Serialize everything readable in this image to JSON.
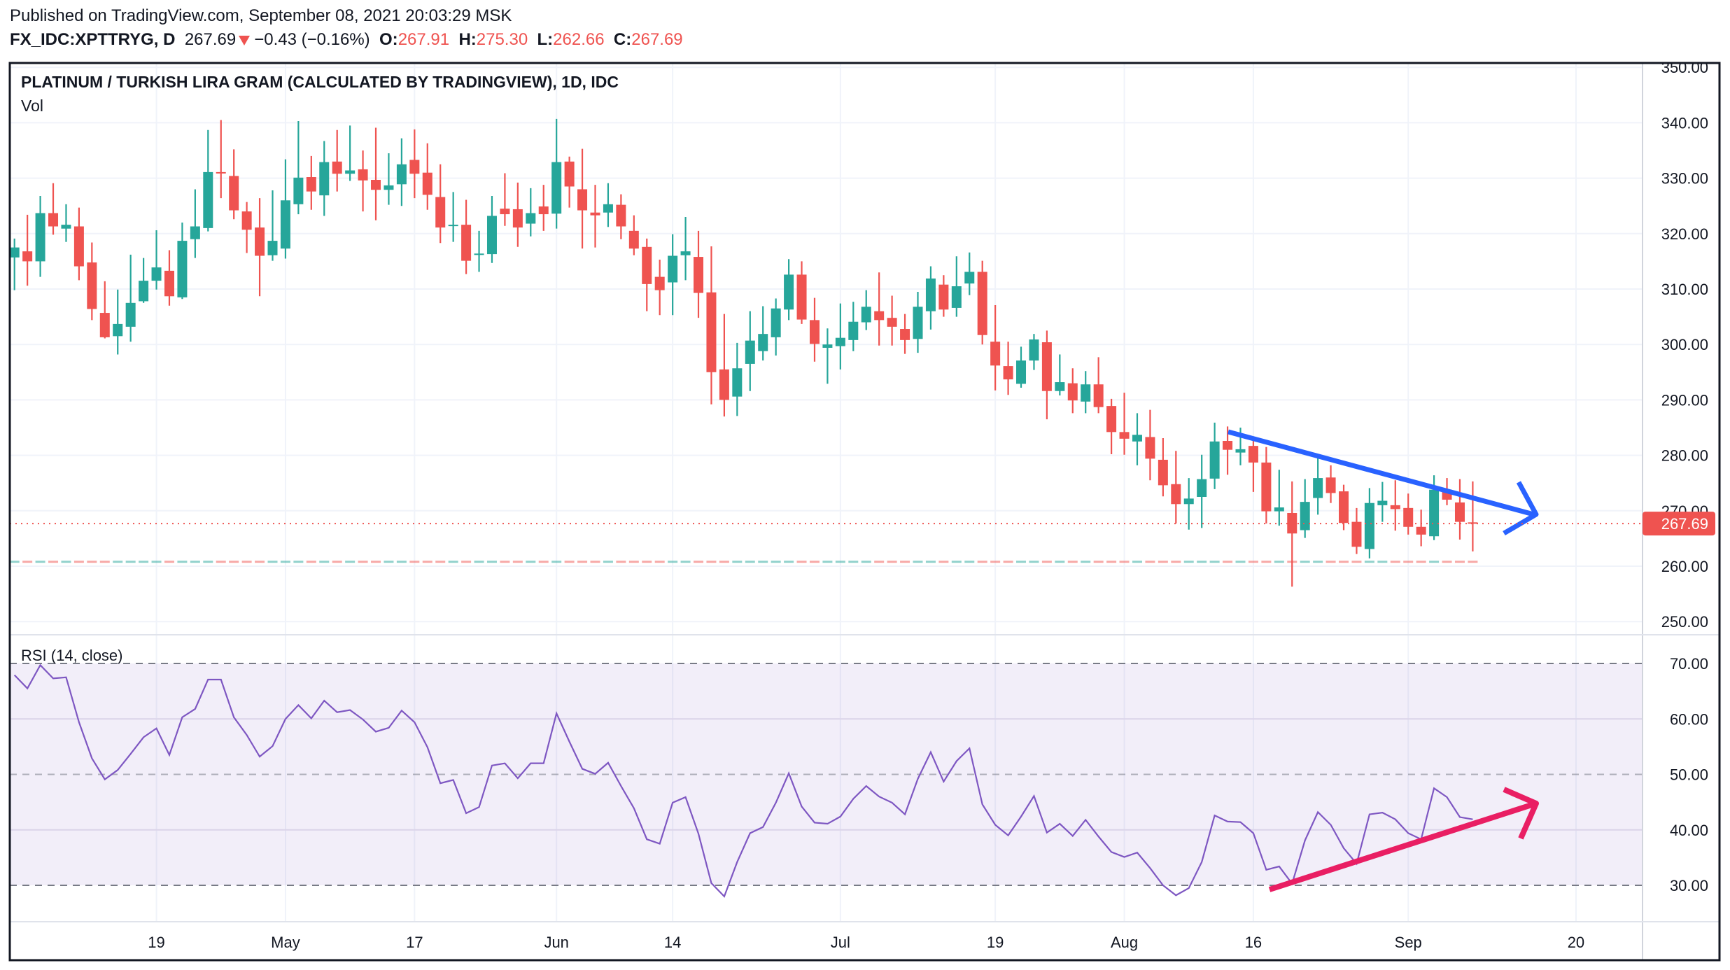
{
  "header": {
    "published": "Published on TradingView.com, September 08, 2021 20:03:29 MSK",
    "symbol": "FX_IDC:XPTTRYG, D",
    "last": "267.69",
    "change": "−0.43 (−0.16%)",
    "o_label": "O:",
    "o": "267.91",
    "h_label": "H:",
    "h": "275.30",
    "l_label": "L:",
    "l": "262.66",
    "c_label": "C:",
    "c": "267.69"
  },
  "colors": {
    "up": "#26a69a",
    "down": "#ef5350",
    "rsi": "#7e57c2",
    "trend_price": "#2962ff",
    "trend_rsi": "#e91e63"
  },
  "chart_data": {
    "type": "candlestick",
    "title": "PLATINUM / TURKISH LIRA GRAM (CALCULATED BY TRADINGVIEW), 1D, IDC",
    "volume_label": "Vol",
    "ylim": [
      248,
      352
    ],
    "y_ticks": [
      "350.00",
      "340.00",
      "330.00",
      "320.00",
      "310.00",
      "300.00",
      "290.00",
      "280.00",
      "270.00",
      "260.00",
      "250.00"
    ],
    "last_price": 267.69,
    "last_price_label": "267.69",
    "x_ticks": [
      {
        "label": "19",
        "index": 11
      },
      {
        "label": "May",
        "index": 21
      },
      {
        "label": "17",
        "index": 31
      },
      {
        "label": "Jun",
        "index": 42
      },
      {
        "label": "14",
        "index": 51
      },
      {
        "label": "Jul",
        "index": 64
      },
      {
        "label": "19",
        "index": 76
      },
      {
        "label": "Aug",
        "index": 86
      },
      {
        "label": "16",
        "index": 96
      },
      {
        "label": "Sep",
        "index": 108
      },
      {
        "label": "20",
        "index": 121
      }
    ],
    "ohlc": [
      [
        315.7,
        319.1,
        309.8,
        317.5
      ],
      [
        316.8,
        323.4,
        310.6,
        315.0
      ],
      [
        315.0,
        326.8,
        312.2,
        323.7
      ],
      [
        323.7,
        329.1,
        319.8,
        321.3
      ],
      [
        320.9,
        325.3,
        318.5,
        321.6
      ],
      [
        321.3,
        324.7,
        311.6,
        314.1
      ],
      [
        314.8,
        318.4,
        304.4,
        306.4
      ],
      [
        305.7,
        311.4,
        301.1,
        301.3
      ],
      [
        301.5,
        309.9,
        298.2,
        303.7
      ],
      [
        303.2,
        316.2,
        300.5,
        307.5
      ],
      [
        307.8,
        315.6,
        307.5,
        311.5
      ],
      [
        311.5,
        320.6,
        309.9,
        313.9
      ],
      [
        313.3,
        317.0,
        307.0,
        308.7
      ],
      [
        308.5,
        322.0,
        308.2,
        318.7
      ],
      [
        319.0,
        328.0,
        315.6,
        321.3
      ],
      [
        321.0,
        338.7,
        320.4,
        331.1
      ],
      [
        331.1,
        340.5,
        326.4,
        331.0
      ],
      [
        330.4,
        335.2,
        322.6,
        324.2
      ],
      [
        324.0,
        325.7,
        316.5,
        320.7
      ],
      [
        321.1,
        326.4,
        308.7,
        316.0
      ],
      [
        316.1,
        327.8,
        315.1,
        318.7
      ],
      [
        317.3,
        333.4,
        315.5,
        326.0
      ],
      [
        325.3,
        340.3,
        323.5,
        330.1
      ],
      [
        330.2,
        334.0,
        324.3,
        327.6
      ],
      [
        326.9,
        336.7,
        323.2,
        332.9
      ],
      [
        333.0,
        338.7,
        327.6,
        330.8
      ],
      [
        330.8,
        339.5,
        329.5,
        331.4
      ],
      [
        331.6,
        335.0,
        324.0,
        329.6
      ],
      [
        329.7,
        339.1,
        322.4,
        327.9
      ],
      [
        327.9,
        334.5,
        325.2,
        328.7
      ],
      [
        328.9,
        337.2,
        325.0,
        332.5
      ],
      [
        333.3,
        338.8,
        326.4,
        330.8
      ],
      [
        331.0,
        336.3,
        324.3,
        327.0
      ],
      [
        326.6,
        332.5,
        318.3,
        321.1
      ],
      [
        321.4,
        327.5,
        318.5,
        321.6
      ],
      [
        321.6,
        326.1,
        312.7,
        315.1
      ],
      [
        316.3,
        320.5,
        313.1,
        316.4
      ],
      [
        316.3,
        326.8,
        314.7,
        323.2
      ],
      [
        324.5,
        330.9,
        321.4,
        323.5
      ],
      [
        324.4,
        329.2,
        317.6,
        321.1
      ],
      [
        321.8,
        328.2,
        319.5,
        323.7
      ],
      [
        324.9,
        328.8,
        320.5,
        323.5
      ],
      [
        323.6,
        340.7,
        320.9,
        332.9
      ],
      [
        333.0,
        333.9,
        324.7,
        328.5
      ],
      [
        328.0,
        335.3,
        317.3,
        324.2
      ],
      [
        323.8,
        328.8,
        317.5,
        323.3
      ],
      [
        323.8,
        329.1,
        321.2,
        325.3
      ],
      [
        325.2,
        327.1,
        319.0,
        321.3
      ],
      [
        320.5,
        323.3,
        316.1,
        317.3
      ],
      [
        317.6,
        319.1,
        306.0,
        310.9
      ],
      [
        312.2,
        315.3,
        305.3,
        309.8
      ],
      [
        311.2,
        319.9,
        305.3,
        316.0
      ],
      [
        316.1,
        323.0,
        311.6,
        316.8
      ],
      [
        315.8,
        320.5,
        304.8,
        309.3
      ],
      [
        309.4,
        317.7,
        289.2,
        295.0
      ],
      [
        295.5,
        305.5,
        287.0,
        290.0
      ],
      [
        290.6,
        300.3,
        287.1,
        295.7
      ],
      [
        296.5,
        306.0,
        291.6,
        300.7
      ],
      [
        298.8,
        306.9,
        297.1,
        301.9
      ],
      [
        301.3,
        308.3,
        298.0,
        306.5
      ],
      [
        306.3,
        315.4,
        304.4,
        312.6
      ],
      [
        312.6,
        315.0,
        303.7,
        304.5
      ],
      [
        304.4,
        308.4,
        296.9,
        300.1
      ],
      [
        299.4,
        302.9,
        292.9,
        300.0
      ],
      [
        299.7,
        307.4,
        295.5,
        301.2
      ],
      [
        300.8,
        307.7,
        298.8,
        304.1
      ],
      [
        304.0,
        309.8,
        302.6,
        306.8
      ],
      [
        306.0,
        313.0,
        299.8,
        304.4
      ],
      [
        304.8,
        308.8,
        299.8,
        303.2
      ],
      [
        302.8,
        305.5,
        298.3,
        300.8
      ],
      [
        301.0,
        309.5,
        298.5,
        306.8
      ],
      [
        306.0,
        314.1,
        302.7,
        311.9
      ],
      [
        310.8,
        312.5,
        305.0,
        306.3
      ],
      [
        306.6,
        315.9,
        305.0,
        310.5
      ],
      [
        311.0,
        316.6,
        308.9,
        313.1
      ],
      [
        313.1,
        315.1,
        300.0,
        301.7
      ],
      [
        300.5,
        307.1,
        291.7,
        296.2
      ],
      [
        296.1,
        300.5,
        290.9,
        293.7
      ],
      [
        292.9,
        299.6,
        292.2,
        297.1
      ],
      [
        297.1,
        301.9,
        295.4,
        300.9
      ],
      [
        300.4,
        302.5,
        286.5,
        291.6
      ],
      [
        291.6,
        298.2,
        290.8,
        293.2
      ],
      [
        293.0,
        295.7,
        287.6,
        289.9
      ],
      [
        289.7,
        295.2,
        287.6,
        292.8
      ],
      [
        292.8,
        297.7,
        287.6,
        288.7
      ],
      [
        288.9,
        290.2,
        280.2,
        284.2
      ],
      [
        284.2,
        291.3,
        280.1,
        283.0
      ],
      [
        282.5,
        287.6,
        278.2,
        283.7
      ],
      [
        283.3,
        288.2,
        275.5,
        279.4
      ],
      [
        279.2,
        283.1,
        272.6,
        274.6
      ],
      [
        274.8,
        280.8,
        267.7,
        271.2
      ],
      [
        271.2,
        275.9,
        266.6,
        272.2
      ],
      [
        272.5,
        280.1,
        266.9,
        275.7
      ],
      [
        275.8,
        285.9,
        273.9,
        282.5
      ],
      [
        282.6,
        285.2,
        276.5,
        281.0
      ],
      [
        280.5,
        285.0,
        278.2,
        281.1
      ],
      [
        281.7,
        282.6,
        273.4,
        278.7
      ],
      [
        278.7,
        281.5,
        267.7,
        269.9
      ],
      [
        269.9,
        277.4,
        267.3,
        270.6
      ],
      [
        269.6,
        275.3,
        256.3,
        265.9
      ],
      [
        266.5,
        275.7,
        265.1,
        271.6
      ],
      [
        272.3,
        279.7,
        269.3,
        275.9
      ],
      [
        276.0,
        278.2,
        271.4,
        273.2
      ],
      [
        273.5,
        274.7,
        266.5,
        267.8
      ],
      [
        268.0,
        270.5,
        262.2,
        263.5
      ],
      [
        263.1,
        274.1,
        261.4,
        271.4
      ],
      [
        271.0,
        275.2,
        268.0,
        271.8
      ],
      [
        271.0,
        275.5,
        266.4,
        270.3
      ],
      [
        270.5,
        273.1,
        265.7,
        267.1
      ],
      [
        267.1,
        270.2,
        263.6,
        265.7
      ],
      [
        265.4,
        276.4,
        264.7,
        273.8
      ],
      [
        273.8,
        275.9,
        271.0,
        272.0
      ],
      [
        271.5,
        275.7,
        264.8,
        268.0
      ],
      [
        267.91,
        275.3,
        262.66,
        267.69
      ]
    ],
    "rsi": {
      "label": "RSI (14, close)",
      "ylim": [
        70,
        30
      ],
      "y_ticks": [
        "70.00",
        "60.00",
        "50.00",
        "40.00",
        "30.00"
      ],
      "band": [
        30,
        70
      ],
      "levels": [
        70,
        50,
        30
      ],
      "values": [
        67.9,
        65.5,
        69.7,
        67.3,
        67.5,
        59.4,
        52.9,
        49.1,
        50.8,
        53.7,
        56.7,
        58.3,
        53.5,
        60.3,
        61.8,
        67.1,
        67.1,
        60.3,
        57.1,
        53.2,
        55.1,
        60.0,
        62.5,
        60.1,
        63.3,
        61.2,
        61.6,
        59.9,
        57.7,
        58.4,
        61.5,
        59.4,
        54.9,
        48.4,
        49.0,
        43.0,
        44.1,
        51.6,
        52.0,
        49.3,
        52.0,
        52.0,
        61.0,
        55.9,
        51.0,
        50.1,
        52.1,
        47.9,
        43.9,
        38.3,
        37.5,
        44.9,
        45.9,
        39.3,
        30.4,
        28.0,
        34.2,
        39.4,
        40.5,
        44.9,
        50.2,
        44.2,
        41.3,
        41.1,
        42.4,
        45.6,
        47.9,
        46.0,
        44.9,
        42.8,
        49.2,
        54.0,
        48.7,
        52.4,
        54.7,
        44.6,
        40.9,
        39.0,
        42.4,
        46.1,
        39.5,
        41.1,
        38.9,
        41.8,
        38.8,
        36.0,
        35.1,
        35.9,
        33.1,
        30.0,
        28.2,
        29.5,
        34.2,
        42.6,
        41.5,
        41.4,
        39.4,
        32.8,
        33.4,
        30.3,
        38.1,
        43.2,
        40.9,
        36.7,
        33.9,
        42.8,
        43.1,
        41.9,
        39.4,
        38.3,
        47.5,
        45.9,
        42.3,
        41.9
      ]
    }
  }
}
